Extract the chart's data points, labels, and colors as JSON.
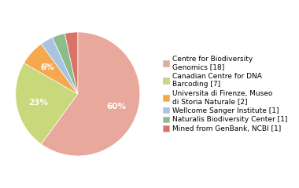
{
  "labels": [
    "Centre for Biodiversity\nGenomics [18]",
    "Canadian Centre for DNA\nBarcoding [7]",
    "Universita di Firenze, Museo\ndi Storia Naturale [2]",
    "Wellcome Sanger Institute [1]",
    "Naturalis Biodiversity Center [1]",
    "Mined from GenBank, NCBI [1]"
  ],
  "values": [
    18,
    7,
    2,
    1,
    1,
    1
  ],
  "colors": [
    "#e8a89c",
    "#c8d87a",
    "#f5a84e",
    "#a8c4e0",
    "#8cbb8c",
    "#d9736a"
  ],
  "pct_labels": [
    "60%",
    "23%",
    "6%",
    "3%",
    "3%",
    "3%"
  ],
  "pct_threshold": 0.05,
  "startangle": 90,
  "legend_fontsize": 6.5,
  "pct_fontsize": 7.5,
  "background_color": "#ffffff"
}
